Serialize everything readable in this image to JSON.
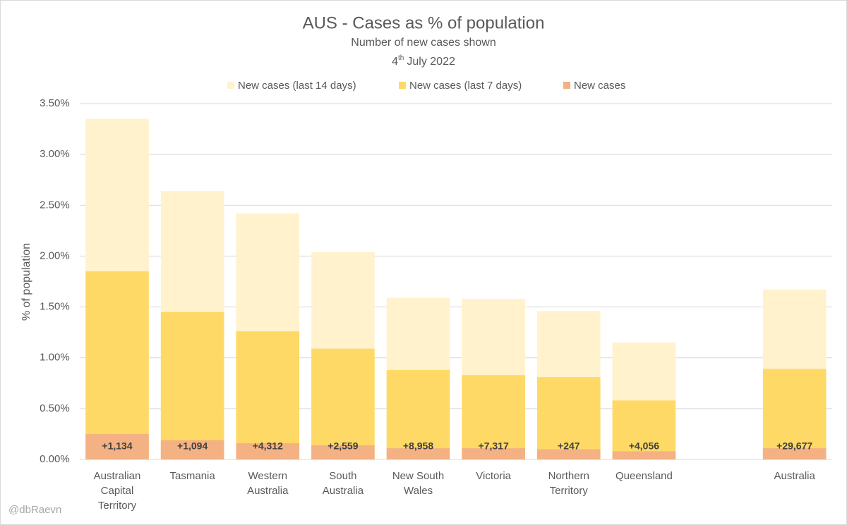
{
  "chart_data": {
    "type": "bar",
    "title": "AUS - Cases as % of population",
    "subtitle": "Number of new cases shown",
    "date_day": "4",
    "date_suffix": "th",
    "date_rest": "July 2022",
    "ylabel": "% of population",
    "credit": "@dbRaevn",
    "categories": [
      "Australian Capital Territory",
      "Tasmania",
      "Western Australia",
      "South Australia",
      "New South Wales",
      "Victoria",
      "Northern Territory",
      "Queensland",
      null,
      "Australia"
    ],
    "series": [
      {
        "name": "New cases (last 14 days)",
        "color": "#fff2cc",
        "values": [
          3.35,
          2.64,
          2.42,
          2.04,
          1.59,
          1.58,
          1.46,
          1.15,
          null,
          1.67
        ]
      },
      {
        "name": "New cases (last 7 days)",
        "color": "#ffd966",
        "values": [
          1.85,
          1.45,
          1.26,
          1.09,
          0.88,
          0.83,
          0.81,
          0.58,
          null,
          0.89
        ]
      },
      {
        "name": "New cases",
        "color": "#f4b183",
        "values": [
          0.25,
          0.19,
          0.16,
          0.14,
          0.11,
          0.11,
          0.1,
          0.08,
          null,
          0.11
        ]
      }
    ],
    "case_labels": [
      "+1,134",
      "+1,094",
      "+4,312",
      "+2,559",
      "+8,958",
      "+7,317",
      "+247",
      "+4,056",
      null,
      "+29,677"
    ],
    "overlap": true,
    "ylim": [
      0,
      3.5
    ],
    "yticks": [
      {
        "value": 0,
        "label": "0.00%"
      },
      {
        "value": 0.5,
        "label": "0.50%"
      },
      {
        "value": 1,
        "label": "1.00%"
      },
      {
        "value": 1.5,
        "label": "1.50%"
      },
      {
        "value": 2,
        "label": "2.00%"
      },
      {
        "value": 2.5,
        "label": "2.50%"
      },
      {
        "value": 3,
        "label": "3.00%"
      },
      {
        "value": 3.5,
        "label": "3.50%"
      }
    ],
    "grid": true,
    "legend": "top"
  }
}
